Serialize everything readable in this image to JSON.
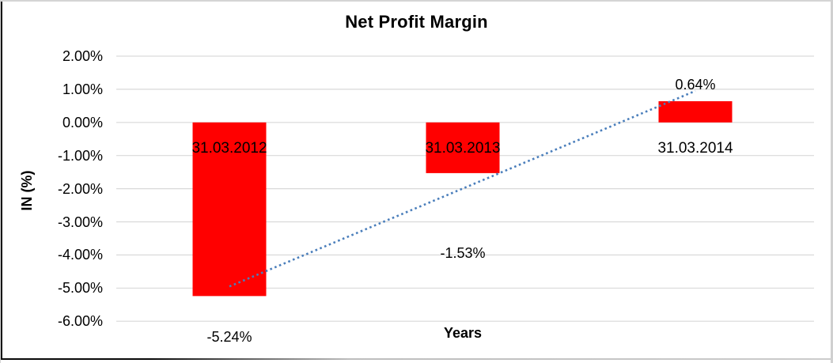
{
  "chart_data": {
    "type": "bar",
    "title": "Net Profit Margin",
    "xlabel": "Years",
    "ylabel": "IN (%)",
    "categories": [
      "31.03.2012",
      "31.03.2013",
      "31.03.2014"
    ],
    "values": [
      -5.24,
      -1.53,
      0.64
    ],
    "data_labels": [
      "-5.24%",
      "-1.53%",
      "0.64%"
    ],
    "yticks": {
      "values": [
        2,
        1,
        0,
        -1,
        -2,
        -3,
        -4,
        -5,
        -6
      ],
      "labels": [
        "2.00%",
        "1.00%",
        "0.00%",
        "-1.00%",
        "-2.00%",
        "-3.00%",
        "-4.00%",
        "-5.00%",
        "-6.00%"
      ]
    },
    "ylim": [
      -6,
      2
    ],
    "grid": true,
    "legend": "none",
    "trendline": {
      "type": "linear",
      "style": "dotted",
      "from_value": -4.95,
      "to_value": 0.95
    },
    "colors": {
      "bar": "#FF0000",
      "trendline": "#4A7EBB",
      "gridline": "#D9D9D9",
      "text": "#000000"
    }
  }
}
